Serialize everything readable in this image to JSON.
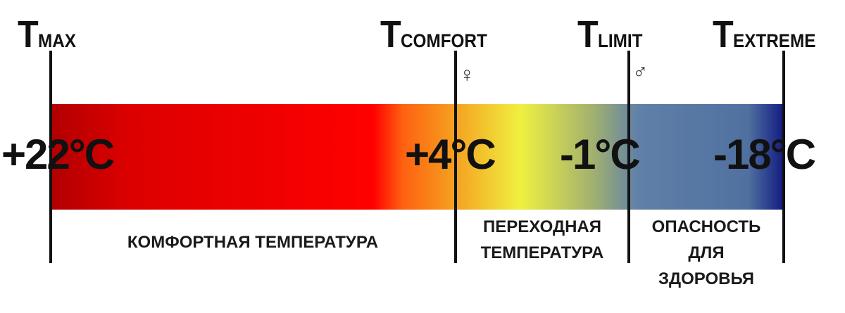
{
  "markers": [
    {
      "letter": "T",
      "sub": "MAX",
      "value": "+22°C"
    },
    {
      "letter": "T",
      "sub": "COMFORT",
      "value": "+4°C",
      "symbol": "♀"
    },
    {
      "letter": "T",
      "sub": "LIMIT",
      "value": "-1°C",
      "symbol": "♂"
    },
    {
      "letter": "T",
      "sub": "EXTREME",
      "value": "-18°C"
    }
  ],
  "zones": [
    {
      "lines": [
        "КОМФОРТНАЯ ТЕМПЕРАТУРА"
      ]
    },
    {
      "lines": [
        "ПЕРЕХОДНАЯ",
        "ТЕМПЕРАТУРА"
      ]
    },
    {
      "lines": [
        "ОПАСНОСТЬ",
        "ДЛЯ",
        "ЗДОРОВЬЯ"
      ]
    }
  ],
  "gradient_colors": [
    "#b00000",
    "#dd0000",
    "#ff0000",
    "#ff6010",
    "#f5a020",
    "#f0f040",
    "#a0b070",
    "#6080a8",
    "#5070a0",
    "#101880"
  ]
}
